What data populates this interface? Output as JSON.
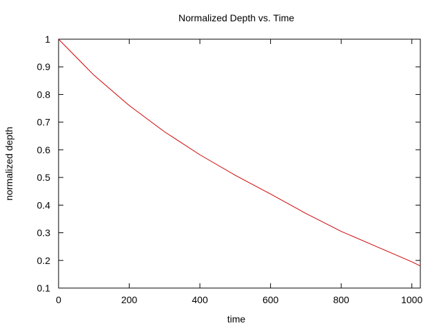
{
  "chart_data": {
    "type": "line",
    "title": "Normalized Depth vs. Time",
    "xlabel": "time",
    "ylabel": "normalized depth",
    "xlim": [
      0,
      1024
    ],
    "ylim": [
      0.1,
      1.0
    ],
    "xticks": [
      0,
      200,
      400,
      600,
      800,
      1000
    ],
    "xtick_labels": [
      "0",
      "200",
      "400",
      "600",
      "800",
      "1000"
    ],
    "yticks": [
      0.1,
      0.2,
      0.3,
      0.4,
      0.5,
      0.6,
      0.7,
      0.8,
      0.9,
      1.0
    ],
    "ytick_labels": [
      "0.1",
      "0.2",
      "0.3",
      "0.4",
      "0.5",
      "0.6",
      "0.7",
      "0.8",
      "0.9",
      "1"
    ],
    "grid": false,
    "legend": false,
    "series": [
      {
        "color": "#cc0000",
        "x": [
          0,
          100,
          200,
          300,
          400,
          500,
          600,
          700,
          800,
          900,
          1000,
          1024
        ],
        "y": [
          1.0,
          0.87,
          0.76,
          0.665,
          0.582,
          0.508,
          0.44,
          0.37,
          0.305,
          0.25,
          0.195,
          0.18
        ]
      }
    ]
  }
}
